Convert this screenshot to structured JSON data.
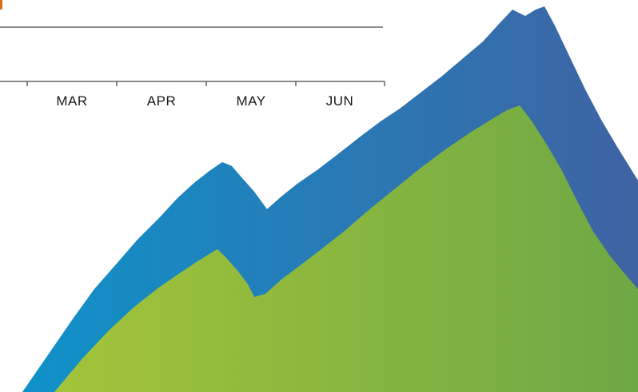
{
  "timeline": {
    "months": [
      {
        "label": "MAR"
      },
      {
        "label": "APR"
      },
      {
        "label": "MAY"
      },
      {
        "label": "JUN"
      }
    ]
  },
  "colors": {
    "accent": "#e06a1b",
    "blue_band_start": "#0f92c9",
    "blue_band_end": "#3f63a3",
    "green_band_start": "#a3c43a",
    "green_band_end": "#6ea845",
    "axis": "#1a1a1a"
  }
}
